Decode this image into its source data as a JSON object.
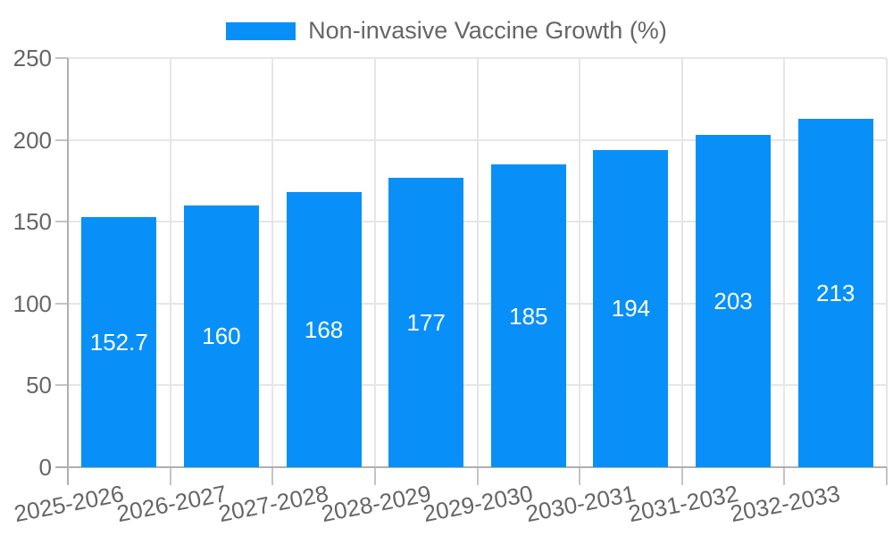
{
  "chart_data": {
    "type": "bar",
    "title": "Non-invasive Vaccine Growth (%)",
    "series_name": "Non-invasive Vaccine Growth (%)",
    "categories": [
      "2025-2026",
      "2026-2027",
      "2027-2028",
      "2028-2029",
      "2029-2030",
      "2030-2031",
      "2031-2032",
      "2032-2033"
    ],
    "values": [
      152.7,
      160,
      168,
      177,
      185,
      194,
      203,
      213
    ],
    "value_labels": [
      "152.7",
      "160",
      "168",
      "177",
      "185",
      "194",
      "203",
      "213"
    ],
    "xlabel": "",
    "ylabel": "",
    "ylim": [
      0,
      250
    ],
    "yticks": [
      0,
      50,
      100,
      150,
      200,
      250
    ],
    "grid": true,
    "legend_position": "top",
    "x_tick_rotation_deg": -11,
    "bar_labels_inside": true,
    "colors": {
      "bar": "#0990f8",
      "bar_label": "#ffffff",
      "grid": "#e6e6e6",
      "axis": "#b0b0b0",
      "tick": "#c4c4c4",
      "text": "#666666",
      "background": "#ffffff"
    }
  }
}
